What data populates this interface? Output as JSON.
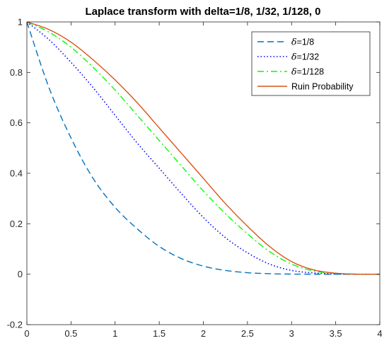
{
  "chart_data": {
    "type": "line",
    "title": "Laplace transform with delta=1/8, 1/32, 1/128, 0",
    "xlabel": "",
    "ylabel": "",
    "xlim": [
      0,
      4
    ],
    "ylim": [
      -0.2,
      1
    ],
    "x_ticks": [
      0,
      0.5,
      1,
      1.5,
      2,
      2.5,
      3,
      3.5,
      4
    ],
    "y_ticks": [
      -0.2,
      0,
      0.2,
      0.4,
      0.6,
      0.8,
      1
    ],
    "x_tick_labels": [
      "0",
      "0.5",
      "1",
      "1.5",
      "2",
      "2.5",
      "3",
      "3.5",
      "4"
    ],
    "y_tick_labels": [
      "-0.2",
      "0",
      "0.2",
      "0.4",
      "0.6",
      "0.8",
      "1"
    ],
    "grid": false,
    "legend_position": "top-right",
    "series": [
      {
        "name": "δ=1/8",
        "legend_prefix": "δ",
        "legend_suffix": "=1/8",
        "color": "#0072BD",
        "style": "dashed",
        "x": [
          0,
          0.25,
          0.5,
          0.75,
          1,
          1.25,
          1.5,
          1.75,
          2,
          2.25,
          2.5,
          2.75,
          3,
          3.25,
          3.5,
          3.75,
          4
        ],
        "y": [
          1.0,
          0.74,
          0.54,
          0.38,
          0.265,
          0.18,
          0.11,
          0.062,
          0.032,
          0.015,
          0.006,
          0.002,
          0.0005,
          0.0001,
          0,
          0,
          0
        ]
      },
      {
        "name": "δ=1/32",
        "legend_prefix": "δ",
        "legend_suffix": "=1/32",
        "color": "#0000FF",
        "style": "dotted",
        "x": [
          0,
          0.25,
          0.5,
          0.75,
          1,
          1.25,
          1.5,
          1.75,
          2,
          2.25,
          2.5,
          2.75,
          3,
          3.25,
          3.5,
          3.75,
          4
        ],
        "y": [
          1.0,
          0.93,
          0.84,
          0.74,
          0.63,
          0.52,
          0.42,
          0.32,
          0.225,
          0.145,
          0.085,
          0.04,
          0.015,
          0.005,
          0.001,
          0,
          0
        ]
      },
      {
        "name": "δ=1/128",
        "legend_prefix": "δ",
        "legend_suffix": "=1/128",
        "color": "#00FF00",
        "style": "dashdot",
        "x": [
          0,
          0.25,
          0.5,
          0.75,
          1,
          1.25,
          1.5,
          1.75,
          2,
          2.25,
          2.5,
          2.75,
          3,
          3.25,
          3.5,
          3.75,
          4
        ],
        "y": [
          1.0,
          0.96,
          0.9,
          0.82,
          0.73,
          0.63,
          0.53,
          0.43,
          0.33,
          0.24,
          0.16,
          0.09,
          0.04,
          0.013,
          0.003,
          0,
          0
        ]
      },
      {
        "name": "Ruin Probability",
        "legend_prefix": "",
        "legend_suffix": "Ruin Probability",
        "color": "#D95319",
        "style": "solid",
        "x": [
          0,
          0.25,
          0.5,
          0.75,
          1,
          1.25,
          1.5,
          1.75,
          2,
          2.25,
          2.5,
          2.75,
          3,
          3.25,
          3.5,
          3.75,
          4
        ],
        "y": [
          1.0,
          0.97,
          0.92,
          0.85,
          0.77,
          0.68,
          0.58,
          0.48,
          0.38,
          0.28,
          0.19,
          0.11,
          0.05,
          0.017,
          0.004,
          0,
          0
        ]
      }
    ]
  }
}
